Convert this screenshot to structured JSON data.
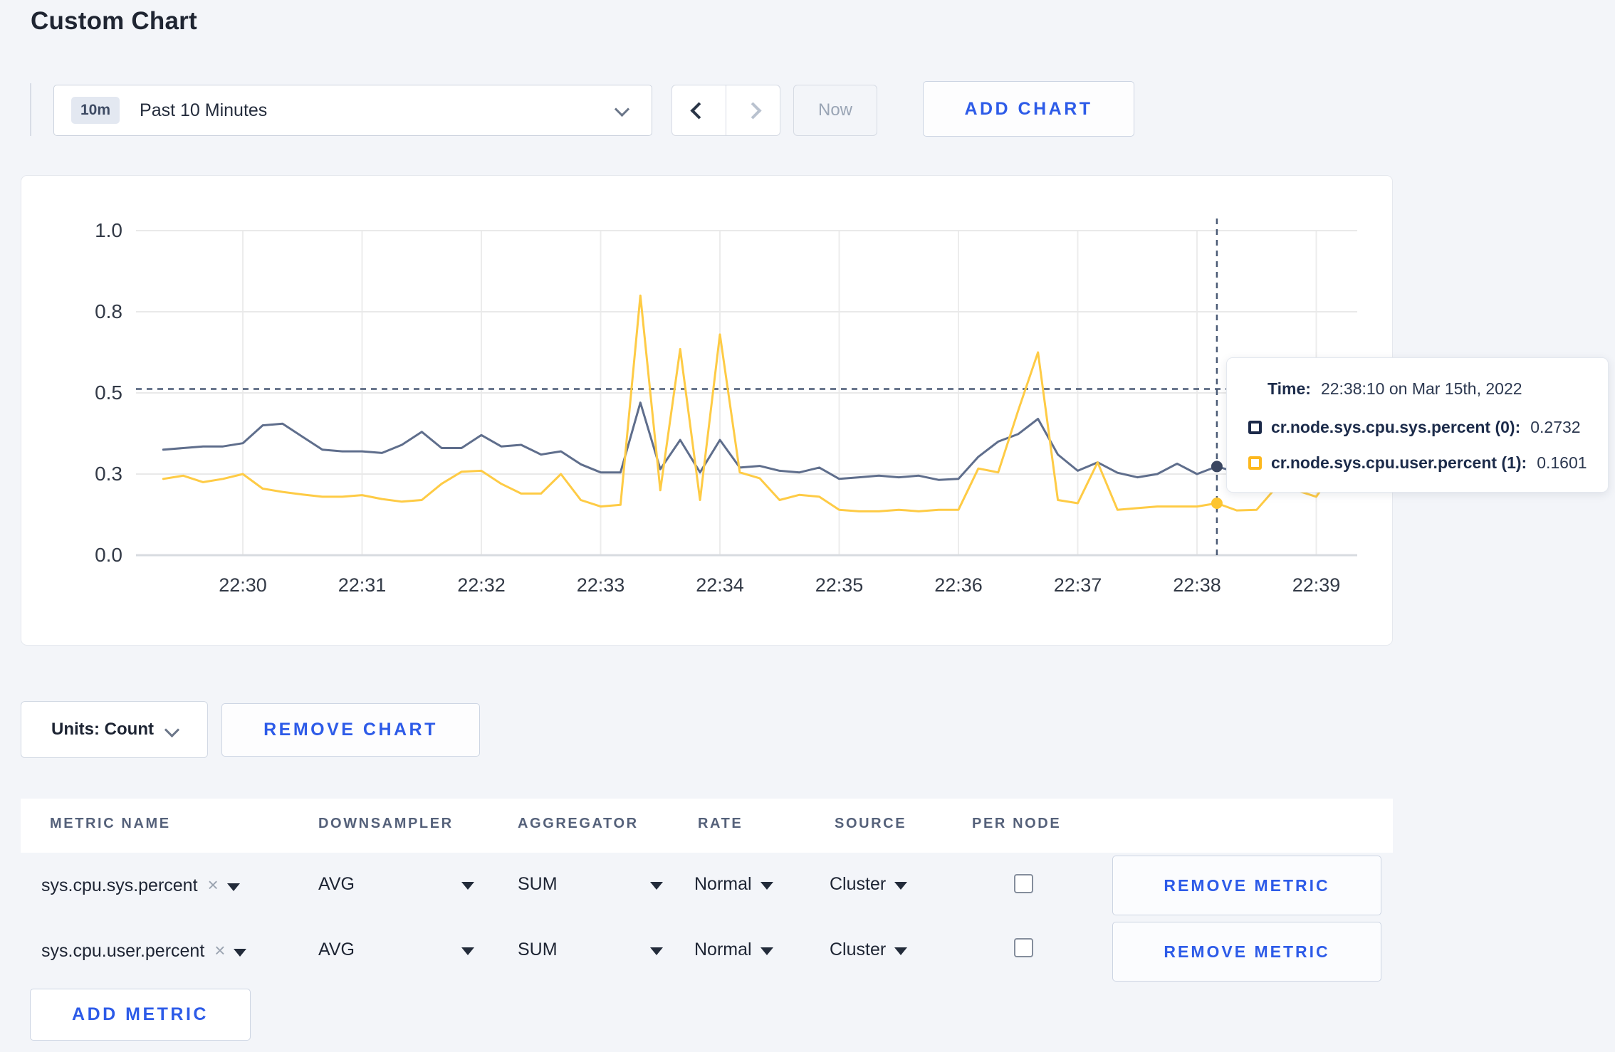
{
  "page": {
    "title": "Custom Chart"
  },
  "toolbar": {
    "time_range": {
      "badge": "10m",
      "label": "Past 10 Minutes"
    },
    "now_label": "Now",
    "add_chart_label": "ADD CHART"
  },
  "chart_data": {
    "type": "line",
    "title": "",
    "xlabel": "",
    "ylabel": "",
    "ylim": [
      0,
      1
    ],
    "grid": true,
    "x_ticks": [
      "22:30",
      "22:31",
      "22:32",
      "22:33",
      "22:34",
      "22:35",
      "22:36",
      "22:37",
      "22:38",
      "22:39"
    ],
    "y_ticks": [
      {
        "value": 0.0,
        "label": "0.0"
      },
      {
        "value": 0.25,
        "label": "0.3"
      },
      {
        "value": 0.5,
        "label": "0.5"
      },
      {
        "value": 0.75,
        "label": "0.8"
      },
      {
        "value": 1.0,
        "label": "1.0"
      }
    ],
    "x_start": "22:29:20",
    "x_step_seconds": 10,
    "series": [
      {
        "name": "cr.node.sys.cpu.sys.percent (0)",
        "color": "#5f6e8c",
        "values": [
          0.325,
          0.33,
          0.335,
          0.335,
          0.345,
          0.4,
          0.405,
          0.365,
          0.325,
          0.32,
          0.32,
          0.315,
          0.34,
          0.38,
          0.33,
          0.33,
          0.37,
          0.335,
          0.34,
          0.31,
          0.32,
          0.28,
          0.255,
          0.255,
          0.47,
          0.265,
          0.355,
          0.255,
          0.355,
          0.27,
          0.275,
          0.26,
          0.255,
          0.27,
          0.235,
          0.24,
          0.245,
          0.24,
          0.245,
          0.232,
          0.235,
          0.303,
          0.35,
          0.373,
          0.42,
          0.31,
          0.26,
          0.286,
          0.254,
          0.24,
          0.25,
          0.282,
          0.25,
          0.2732,
          0.256,
          0.27,
          0.29,
          0.3,
          0.295,
          0.3,
          0.305
        ]
      },
      {
        "name": "cr.node.sys.cpu.user.percent (1)",
        "color": "#fecb45",
        "values": [
          0.235,
          0.245,
          0.225,
          0.235,
          0.25,
          0.205,
          0.195,
          0.187,
          0.18,
          0.18,
          0.185,
          0.173,
          0.165,
          0.17,
          0.22,
          0.257,
          0.26,
          0.22,
          0.19,
          0.19,
          0.25,
          0.17,
          0.15,
          0.155,
          0.8,
          0.2,
          0.635,
          0.17,
          0.68,
          0.255,
          0.237,
          0.17,
          0.186,
          0.18,
          0.14,
          0.135,
          0.135,
          0.14,
          0.135,
          0.14,
          0.14,
          0.267,
          0.255,
          0.445,
          0.625,
          0.17,
          0.16,
          0.286,
          0.14,
          0.145,
          0.15,
          0.15,
          0.15,
          0.1601,
          0.138,
          0.14,
          0.21,
          0.2,
          0.18,
          0.27,
          0.235
        ]
      }
    ],
    "crosshair": {
      "time": "22:38:10",
      "y_value": 0.512,
      "point_values": [
        0.2732,
        0.1601
      ],
      "point_colors": [
        "#3b4761",
        "#fdc530"
      ]
    },
    "legend_position": "tooltip"
  },
  "tooltip": {
    "time_label": "Time:",
    "time_value": "22:38:10 on Mar 15th, 2022",
    "rows": [
      {
        "label": "cr.node.sys.cpu.sys.percent (0):",
        "value": "0.2732",
        "color": "#1b2949"
      },
      {
        "label": "cr.node.sys.cpu.user.percent (1):",
        "value": "0.1601",
        "color": "#fdb81e"
      }
    ]
  },
  "chart_footer": {
    "units_label": "Units: Count",
    "remove_chart_label": "REMOVE CHART"
  },
  "metrics_table": {
    "headers": [
      "METRIC NAME",
      "DOWNSAMPLER",
      "AGGREGATOR",
      "RATE",
      "SOURCE",
      "PER NODE"
    ],
    "close_glyph": "×",
    "rows": [
      {
        "name": "sys.cpu.sys.percent",
        "downsampler": "AVG",
        "aggregator": "SUM",
        "rate": "Normal",
        "source": "Cluster",
        "per_node_checked": false,
        "remove_label": "REMOVE METRIC"
      },
      {
        "name": "sys.cpu.user.percent",
        "downsampler": "AVG",
        "aggregator": "SUM",
        "rate": "Normal",
        "source": "Cluster",
        "per_node_checked": false,
        "remove_label": "REMOVE METRIC"
      }
    ],
    "add_metric_label": "ADD METRIC"
  }
}
